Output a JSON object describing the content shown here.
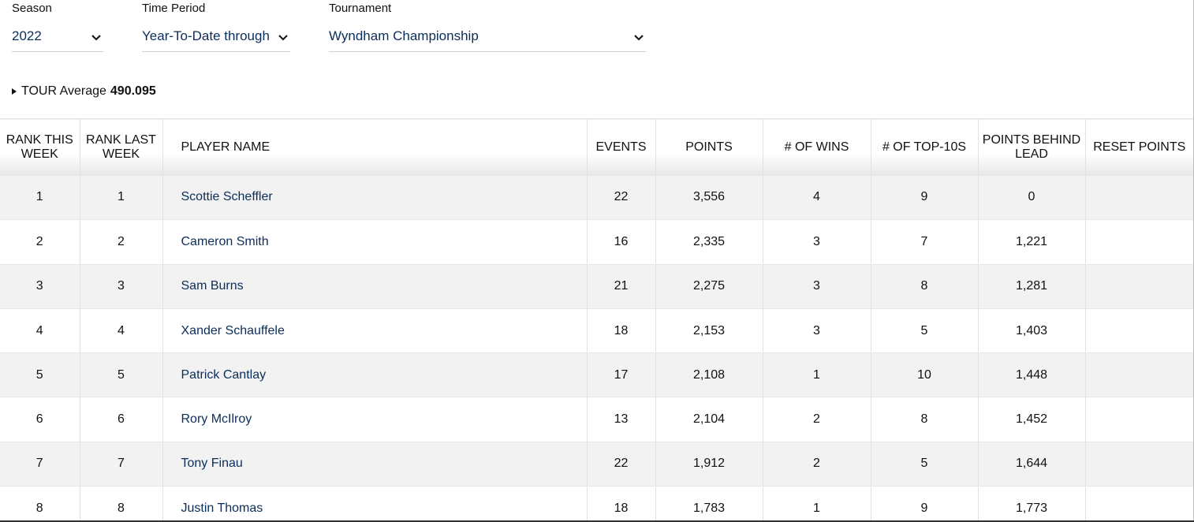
{
  "filters": {
    "season": {
      "label": "Season",
      "value": "2022"
    },
    "time_period": {
      "label": "Time Period",
      "value": "Year-To-Date through"
    },
    "tournament": {
      "label": "Tournament",
      "value": "Wyndham Championship"
    }
  },
  "tour_average": {
    "label": "TOUR Average",
    "value": "490.095"
  },
  "table": {
    "columns": [
      "RANK THIS WEEK",
      "RANK LAST WEEK",
      "PLAYER NAME",
      "EVENTS",
      "POINTS",
      "# OF WINS",
      "# OF TOP-10S",
      "POINTS BEHIND LEAD",
      "RESET POINTS"
    ],
    "rows": [
      [
        "1",
        "1",
        "Scottie Scheffler",
        "22",
        "3,556",
        "4",
        "9",
        "0",
        ""
      ],
      [
        "2",
        "2",
        "Cameron Smith",
        "16",
        "2,335",
        "3",
        "7",
        "1,221",
        ""
      ],
      [
        "3",
        "3",
        "Sam Burns",
        "21",
        "2,275",
        "3",
        "8",
        "1,281",
        ""
      ],
      [
        "4",
        "4",
        "Xander Schauffele",
        "18",
        "2,153",
        "3",
        "5",
        "1,403",
        ""
      ],
      [
        "5",
        "5",
        "Patrick Cantlay",
        "17",
        "2,108",
        "1",
        "10",
        "1,448",
        ""
      ],
      [
        "6",
        "6",
        "Rory McIlroy",
        "13",
        "2,104",
        "2",
        "8",
        "1,452",
        ""
      ],
      [
        "7",
        "7",
        "Tony Finau",
        "22",
        "1,912",
        "2",
        "5",
        "1,644",
        ""
      ],
      [
        "8",
        "8",
        "Justin Thomas",
        "18",
        "1,783",
        "1",
        "9",
        "1,773",
        ""
      ]
    ]
  },
  "icons": {
    "dropdown": "chevron-down-icon",
    "expand": "triangle-right-icon"
  },
  "colors": {
    "link": "#0b2d5a",
    "row_alt": "#f2f2f2"
  }
}
